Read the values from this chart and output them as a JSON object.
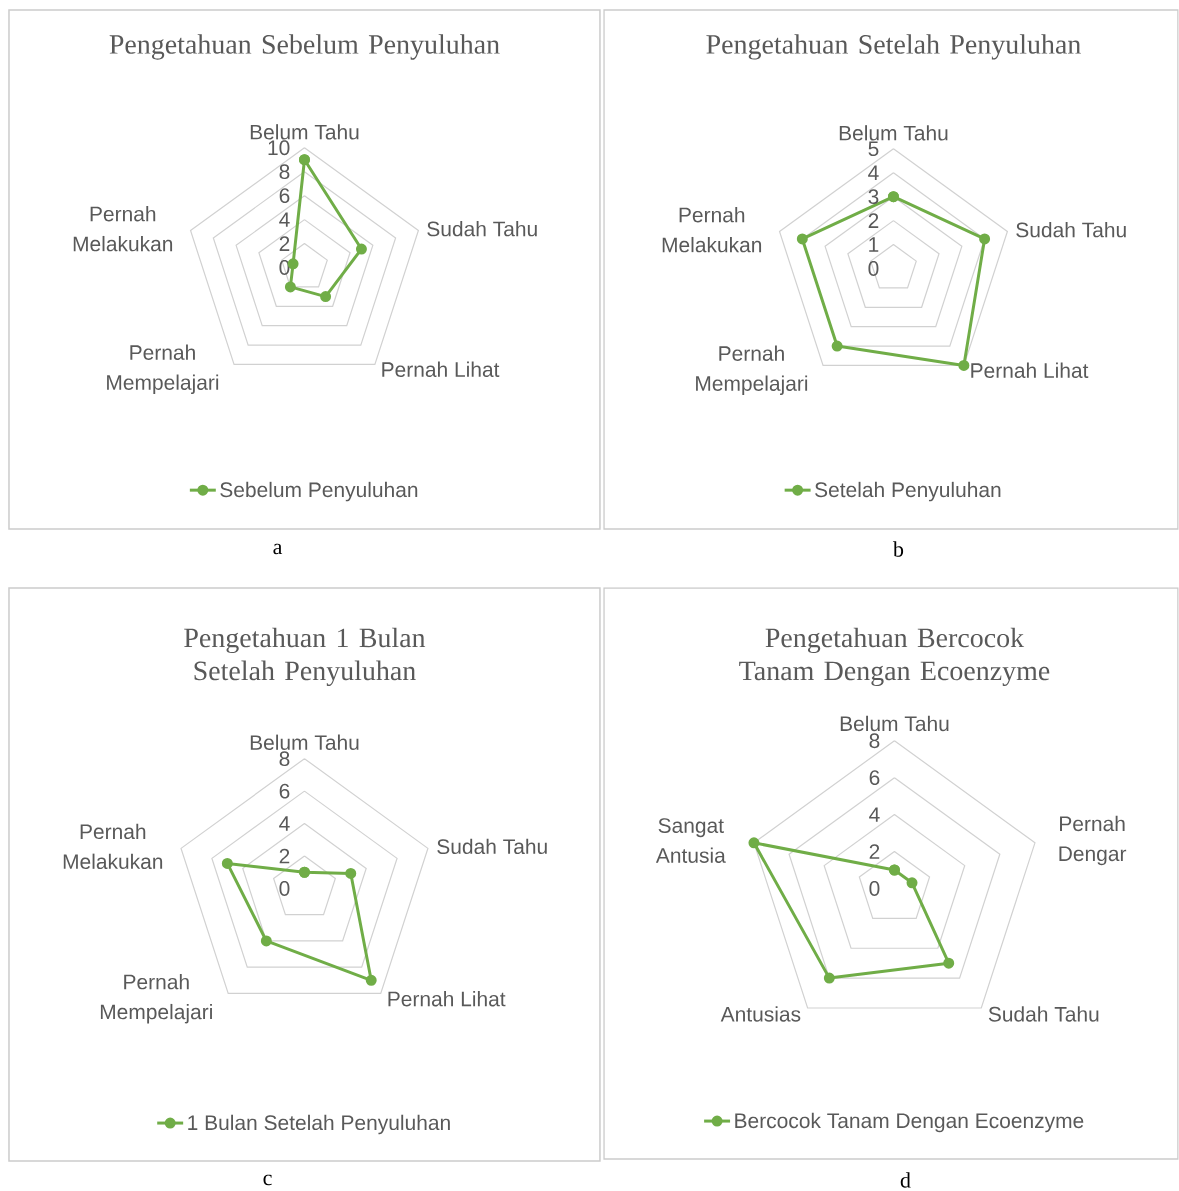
{
  "chart_data": [
    {
      "type": "radar",
      "title": "Pengetahuan Sebelum Penyuluhan",
      "categories": [
        "Belum Tahu",
        "Sudah Tahu",
        "Pernah Lihat",
        "Pernah Mempelajari",
        "Pernah Melakukan"
      ],
      "series": [
        {
          "name": "Sebelum Penyuluhan",
          "color": "#70ad47",
          "values": [
            9,
            5,
            3,
            2,
            1
          ]
        }
      ],
      "ylim": [
        0,
        10
      ],
      "yticks": [
        0,
        2,
        4,
        6,
        8,
        10
      ],
      "grid": true,
      "legend": "bottom",
      "marker": "circle",
      "line_style": "solid",
      "annotations": [
        "a"
      ]
    },
    {
      "type": "radar",
      "title": "Pengetahuan Setelah Penyuluhan",
      "categories": [
        "Belum Tahu",
        "Sudah Tahu",
        "Pernah Lihat",
        "Pernah Mempelajari",
        "Pernah Melakukan"
      ],
      "series": [
        {
          "name": "Setelah Penyuluhan",
          "color": "#70ad47",
          "values": [
            3,
            4,
            5,
            4,
            4
          ]
        }
      ],
      "ylim": [
        0,
        5
      ],
      "yticks": [
        0,
        1,
        2,
        3,
        4,
        5
      ],
      "grid": true,
      "legend": "bottom",
      "marker": "circle",
      "line_style": "solid",
      "annotations": [
        "b"
      ]
    },
    {
      "type": "radar",
      "title": "Pengetahuan 1 Bulan Setelah Penyuluhan",
      "categories": [
        "Belum Tahu",
        "Sudah Tahu",
        "Pernah Lihat",
        "Pernah Mempelajari",
        "Pernah Melakukan"
      ],
      "series": [
        {
          "name": "1 Bulan Setelah Penyuluhan",
          "color": "#70ad47",
          "values": [
            1,
            3,
            7,
            4,
            5
          ]
        }
      ],
      "ylim": [
        0,
        8
      ],
      "yticks": [
        0,
        2,
        4,
        6,
        8
      ],
      "grid": true,
      "legend": "bottom",
      "marker": "circle",
      "line_style": "solid",
      "annotations": [
        "c"
      ]
    },
    {
      "type": "radar",
      "title": "Pengetahuan Bercocok Tanam Dengan Ecoenzyme",
      "categories": [
        "Belum Tahu",
        "Pernah Dengar",
        "Sudah Tahu",
        "Antusias",
        "Sangat Antusia"
      ],
      "series": [
        {
          "name": "Bercocok Tanam Dengan Ecoenzyme",
          "color": "#70ad47",
          "values": [
            1,
            1,
            5,
            6,
            8
          ]
        }
      ],
      "ylim": [
        0,
        8
      ],
      "yticks": [
        0,
        2,
        4,
        6,
        8
      ],
      "grid": true,
      "legend": "bottom",
      "marker": "circle",
      "line_style": "solid",
      "annotations": [
        "d"
      ]
    }
  ]
}
